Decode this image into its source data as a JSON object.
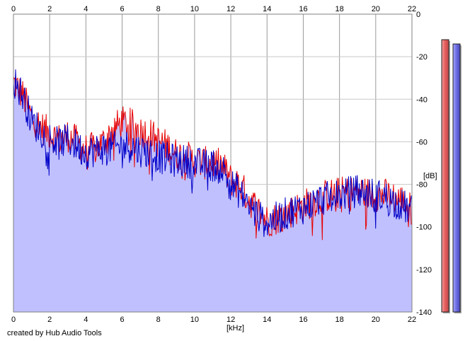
{
  "footer": {
    "credit": "created by Hub Audio Tools"
  },
  "chart_data": {
    "type": "area",
    "xlabel": "[kHz]",
    "ylabel": "[dB]",
    "xlim": [
      0,
      22
    ],
    "ylim": [
      -140,
      0
    ],
    "x_ticks": [
      0,
      2,
      4,
      6,
      8,
      10,
      12,
      14,
      16,
      18,
      20,
      22
    ],
    "y_ticks": [
      0,
      -20,
      -40,
      -60,
      -80,
      -100,
      -120,
      -140
    ],
    "x_tick_labels": [
      "0",
      "2",
      "4",
      "6",
      "8",
      "10",
      "12",
      "14",
      "16",
      "18",
      "20",
      "22"
    ],
    "y_tick_labels": [
      "0",
      "-20",
      "-40",
      "-60",
      "-80",
      "-100",
      "-120",
      "-140"
    ],
    "grid": true,
    "colors": {
      "left_channel": "#e80000",
      "right_channel": "#0000c8",
      "fill": "#c0c0ff",
      "left_level_bar": "#f08080",
      "right_level_bar": "#8080f0"
    },
    "series": [
      {
        "channel": "left",
        "x": [
          0,
          0.5,
          1,
          1.5,
          2,
          2.5,
          3,
          3.5,
          4,
          4.5,
          5,
          5.5,
          6,
          6.5,
          7,
          7.5,
          8,
          8.5,
          9,
          9.5,
          10,
          10.5,
          11,
          11.5,
          12,
          12.5,
          13,
          13.5,
          14,
          14.5,
          15,
          15.5,
          16,
          16.5,
          17,
          17.5,
          18,
          18.5,
          19,
          19.5,
          20,
          20.5,
          21,
          21.5,
          22
        ],
        "values": [
          -32,
          -38,
          -48,
          -53,
          -56,
          -59,
          -57,
          -60,
          -64,
          -63,
          -60,
          -54,
          -51,
          -52,
          -55,
          -56,
          -60,
          -62,
          -66,
          -67,
          -69,
          -70,
          -70,
          -71,
          -78,
          -80,
          -87,
          -92,
          -97,
          -96,
          -94,
          -92,
          -90,
          -88,
          -86,
          -85,
          -84,
          -84,
          -83,
          -84,
          -85,
          -85,
          -86,
          -88,
          -92
        ]
      },
      {
        "channel": "right",
        "x": [
          0,
          0.5,
          1,
          1.5,
          2,
          2.5,
          3,
          3.5,
          4,
          4.5,
          5,
          5.5,
          6,
          6.5,
          7,
          7.5,
          8,
          8.5,
          9,
          9.5,
          10,
          10.5,
          11,
          11.5,
          12,
          12.5,
          13,
          13.5,
          14,
          14.5,
          15,
          15.5,
          16,
          16.5,
          17,
          17.5,
          18,
          18.5,
          19,
          19.5,
          20,
          20.5,
          21,
          21.5,
          22
        ],
        "values": [
          -31,
          -38,
          -50,
          -55,
          -58,
          -61,
          -59,
          -62,
          -65,
          -64,
          -63,
          -63,
          -62,
          -62,
          -64,
          -65,
          -67,
          -68,
          -69,
          -69,
          -70,
          -71,
          -71,
          -72,
          -80,
          -84,
          -90,
          -95,
          -98,
          -96,
          -94,
          -92,
          -91,
          -89,
          -87,
          -86,
          -85,
          -84,
          -83,
          -84,
          -85,
          -86,
          -88,
          -90,
          -93
        ]
      }
    ],
    "level_meters": [
      {
        "channel": "left",
        "level_db": -12
      },
      {
        "channel": "right",
        "level_db": -14
      }
    ]
  }
}
